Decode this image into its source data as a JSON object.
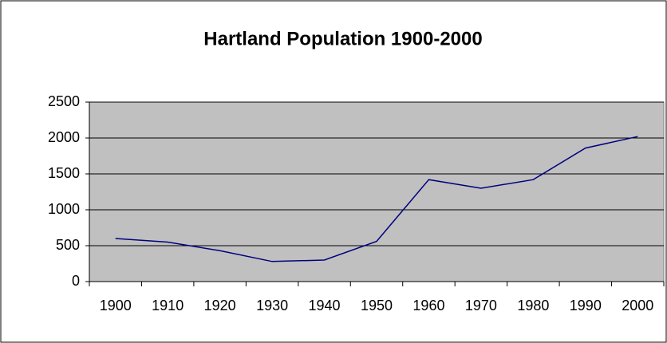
{
  "chart_data": {
    "type": "line",
    "title": "Hartland Population 1900-2000",
    "categories": [
      "1900",
      "1910",
      "1920",
      "1930",
      "1940",
      "1950",
      "1960",
      "1970",
      "1980",
      "1990",
      "2000"
    ],
    "values": [
      600,
      550,
      430,
      280,
      300,
      560,
      1420,
      1300,
      1420,
      1860,
      2020
    ],
    "color": "#000080",
    "ylim": [
      0,
      2500
    ],
    "yticks": [
      0,
      500,
      1000,
      1500,
      2000,
      2500
    ],
    "grid": true
  }
}
